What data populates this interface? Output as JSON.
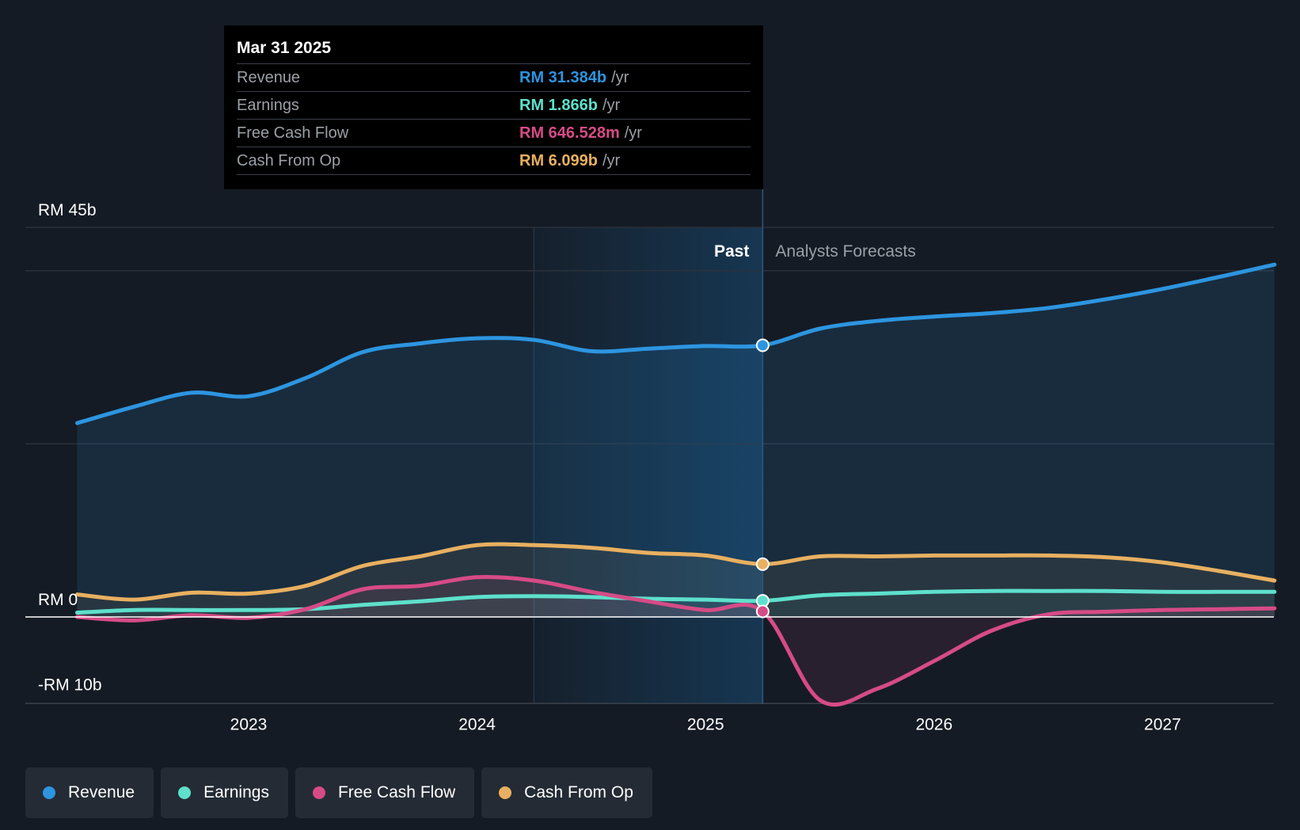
{
  "tooltip": {
    "date": "Mar 31 2025",
    "rows": [
      {
        "label": "Revenue",
        "value": "RM 31.384b",
        "unit": "/yr",
        "color": "#2d95e0"
      },
      {
        "label": "Earnings",
        "value": "RM 1.866b",
        "unit": "/yr",
        "color": "#5ee0cc"
      },
      {
        "label": "Free Cash Flow",
        "value": "RM 646.528m",
        "unit": "/yr",
        "color": "#d64b86"
      },
      {
        "label": "Cash From Op",
        "value": "RM 6.099b",
        "unit": "/yr",
        "color": "#e8b060"
      }
    ]
  },
  "legend": [
    {
      "label": "Revenue",
      "color": "#2d95e0"
    },
    {
      "label": "Earnings",
      "color": "#5ee0cc"
    },
    {
      "label": "Free Cash Flow",
      "color": "#d64b86"
    },
    {
      "label": "Cash From Op",
      "color": "#e8b060"
    }
  ],
  "chart_data": {
    "type": "line",
    "y_axis_labels": [
      "RM 45b",
      "RM 0",
      "-RM 10b"
    ],
    "ylim": [
      -10,
      45
    ],
    "xlim": [
      2022.22,
      2027.49
    ],
    "x_ticks": [
      2023,
      2024,
      2025,
      2026,
      2027
    ],
    "x_tick_labels": [
      "2023",
      "2024",
      "2025",
      "2026",
      "2027"
    ],
    "past_label": "Past",
    "forecast_label": "Analysts Forecasts",
    "divider_x": 2025.25,
    "highlight_start_x": 2024.25,
    "series": [
      {
        "name": "Revenue",
        "color": "#2d95e0",
        "x": [
          2022.25,
          2022.5,
          2022.75,
          2023.0,
          2023.25,
          2023.5,
          2023.75,
          2024.0,
          2024.25,
          2024.5,
          2024.75,
          2025.0,
          2025.25,
          2025.5,
          2025.75,
          2026.0,
          2026.25,
          2026.5,
          2026.75,
          2027.0,
          2027.25,
          2027.49
        ],
        "y": [
          22.4,
          24.3,
          25.9,
          25.5,
          27.6,
          30.6,
          31.6,
          32.2,
          32.0,
          30.7,
          31.0,
          31.3,
          31.384,
          33.3,
          34.2,
          34.7,
          35.1,
          35.7,
          36.7,
          37.9,
          39.3,
          40.7
        ]
      },
      {
        "name": "Earnings",
        "color": "#5ee0cc",
        "x": [
          2022.25,
          2022.5,
          2022.75,
          2023.0,
          2023.25,
          2023.5,
          2023.75,
          2024.0,
          2024.25,
          2024.5,
          2024.75,
          2025.0,
          2025.25,
          2025.5,
          2025.75,
          2026.0,
          2026.25,
          2026.5,
          2026.75,
          2027.0,
          2027.25,
          2027.49
        ],
        "y": [
          0.5,
          0.8,
          0.8,
          0.8,
          0.9,
          1.4,
          1.8,
          2.3,
          2.4,
          2.3,
          2.1,
          2.0,
          1.866,
          2.5,
          2.7,
          2.9,
          3.0,
          3.0,
          3.0,
          2.9,
          2.9,
          2.9
        ]
      },
      {
        "name": "Free Cash Flow",
        "color": "#d64b86",
        "x": [
          2022.25,
          2022.5,
          2022.75,
          2023.0,
          2023.25,
          2023.5,
          2023.75,
          2024.0,
          2024.25,
          2024.5,
          2024.75,
          2025.0,
          2025.25,
          2025.5,
          2025.75,
          2026.0,
          2026.25,
          2026.5,
          2026.75,
          2027.0,
          2027.25,
          2027.49
        ],
        "y": [
          0.0,
          -0.4,
          0.2,
          -0.1,
          0.9,
          3.2,
          3.6,
          4.6,
          4.2,
          2.9,
          1.8,
          0.8,
          0.646,
          -9.6,
          -8.3,
          -5.1,
          -1.6,
          0.3,
          0.6,
          0.8,
          0.9,
          1.0
        ]
      },
      {
        "name": "Cash From Op",
        "color": "#e8b060",
        "x": [
          2022.25,
          2022.5,
          2022.75,
          2023.0,
          2023.25,
          2023.5,
          2023.75,
          2024.0,
          2024.25,
          2024.5,
          2024.75,
          2025.0,
          2025.25,
          2025.5,
          2025.75,
          2026.0,
          2026.25,
          2026.5,
          2026.75,
          2027.0,
          2027.25,
          2027.49
        ],
        "y": [
          2.6,
          2.0,
          2.8,
          2.7,
          3.6,
          5.9,
          7.0,
          8.3,
          8.3,
          8.0,
          7.4,
          7.1,
          6.099,
          7.0,
          7.0,
          7.1,
          7.1,
          7.1,
          6.9,
          6.3,
          5.3,
          4.2
        ]
      }
    ]
  }
}
